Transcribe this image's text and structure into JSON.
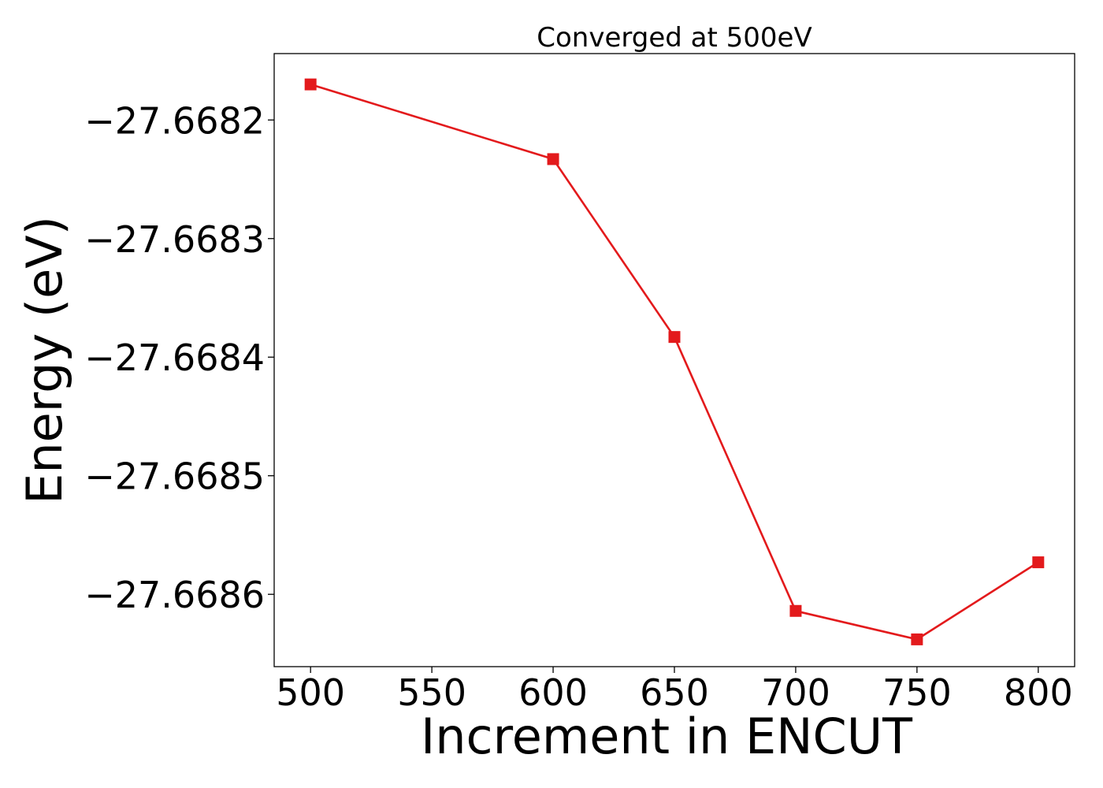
{
  "chart_data": {
    "type": "line",
    "title": "Converged at 500eV",
    "xlabel": "Increment in ENCUT",
    "ylabel": "Energy (eV)",
    "x": [
      500,
      600,
      650,
      700,
      750,
      800
    ],
    "series": [
      {
        "values": [
          -27.66817,
          -27.668233,
          -27.668383,
          -27.668614,
          -27.668638,
          -27.668573
        ],
        "color": "#e31a1c",
        "marker": "square"
      }
    ],
    "xlim": [
      485,
      815
    ],
    "ylim": [
      -27.668661,
      -27.668144
    ],
    "xticks": [
      500,
      550,
      600,
      650,
      700,
      750,
      800
    ],
    "xtick_labels": [
      "500",
      "550",
      "600",
      "650",
      "700",
      "750",
      "800"
    ],
    "yticks": [
      -27.6682,
      -27.6683,
      -27.6684,
      -27.6685,
      -27.6686
    ],
    "ytick_labels": [
      "−27.6682",
      "−27.6683",
      "−27.6684",
      "−27.6685",
      "−27.6686"
    ],
    "grid": false,
    "legend": "none"
  }
}
